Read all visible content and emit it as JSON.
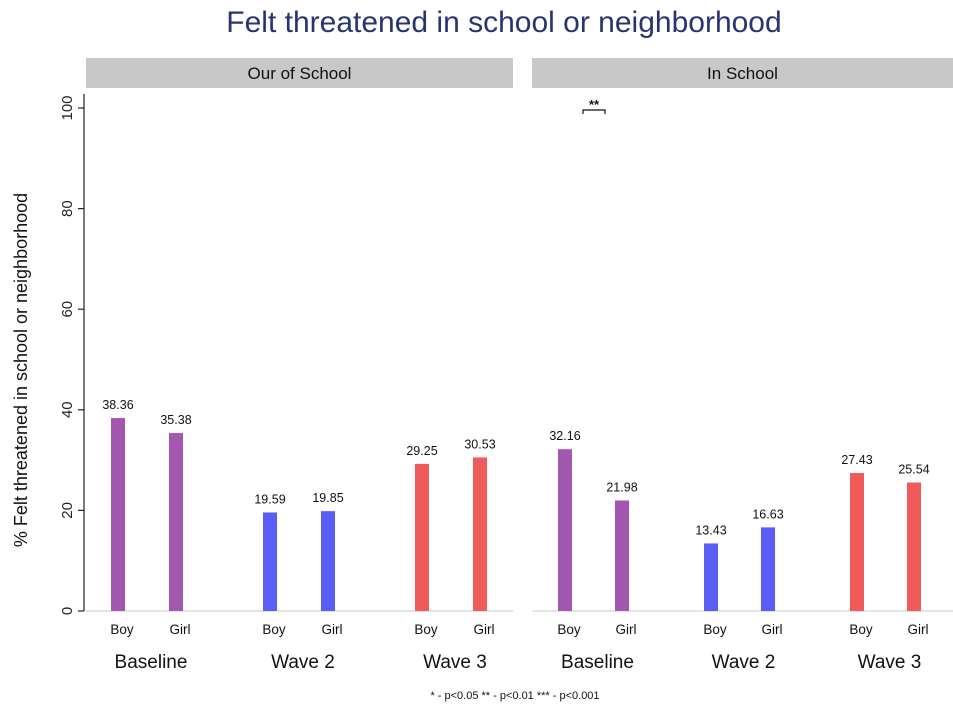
{
  "chart_data": {
    "type": "bar",
    "title": "Felt threatened in school or neighborhood",
    "ylabel": "% Felt threatened in school or neighborhood",
    "ylim": [
      0,
      100
    ],
    "yticks": [
      0,
      20,
      40,
      60,
      80,
      100
    ],
    "grid": false,
    "note": "* - p<0.05 ** - p<0.01 *** - p<0.001",
    "panels": [
      {
        "label": "Our of School",
        "groups": [
          {
            "label": "Baseline",
            "color": "#a457b0",
            "bars": [
              {
                "label": "Boy",
                "value": 38.36
              },
              {
                "label": "Girl",
                "value": 35.38
              }
            ]
          },
          {
            "label": "Wave 2",
            "color": "#5b5ef5",
            "bars": [
              {
                "label": "Boy",
                "value": 19.59
              },
              {
                "label": "Girl",
                "value": 19.85
              }
            ]
          },
          {
            "label": "Wave 3",
            "color": "#f05a5a",
            "bars": [
              {
                "label": "Boy",
                "value": 29.25
              },
              {
                "label": "Girl",
                "value": 30.53
              }
            ]
          }
        ]
      },
      {
        "label": "In School",
        "significance": {
          "group": "Baseline",
          "marker": "**"
        },
        "groups": [
          {
            "label": "Baseline",
            "color": "#a457b0",
            "bars": [
              {
                "label": "Boy",
                "value": 32.16
              },
              {
                "label": "Girl",
                "value": 21.98
              }
            ]
          },
          {
            "label": "Wave 2",
            "color": "#5b5ef5",
            "bars": [
              {
                "label": "Boy",
                "value": 13.43
              },
              {
                "label": "Girl",
                "value": 16.63
              }
            ]
          },
          {
            "label": "Wave 3",
            "color": "#f05a5a",
            "bars": [
              {
                "label": "Boy",
                "value": 27.43
              },
              {
                "label": "Girl",
                "value": 25.54
              }
            ]
          }
        ]
      }
    ]
  }
}
